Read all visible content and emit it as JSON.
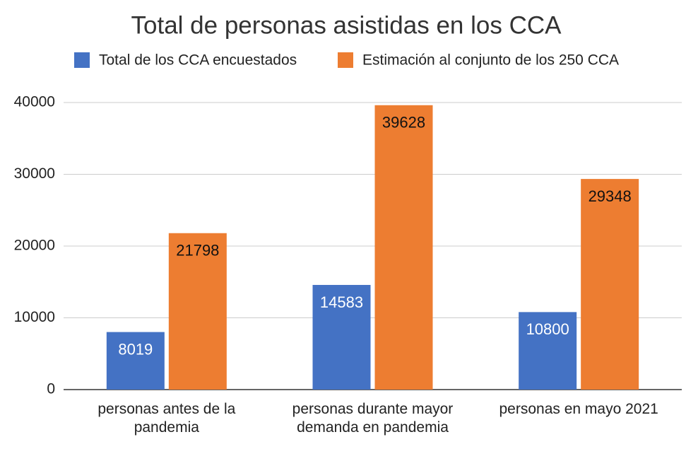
{
  "chart_data": {
    "type": "bar",
    "title": "Total de personas asistidas en los CCA",
    "categories": [
      "personas antes de la pandemia",
      "personas durante mayor demanda en pandemia",
      "personas en mayo 2021"
    ],
    "series": [
      {
        "name": "Total de los CCA encuestados",
        "color": "#4472c4",
        "values": [
          8019,
          14583,
          10800
        ]
      },
      {
        "name": "Estimación al conjunto de los 250 CCA",
        "color": "#ed7d31",
        "values": [
          21798,
          39628,
          29348
        ]
      }
    ],
    "ylim": [
      0,
      40000
    ],
    "yticks": [
      0,
      10000,
      20000,
      30000,
      40000
    ],
    "grid": true,
    "legend": "top"
  }
}
